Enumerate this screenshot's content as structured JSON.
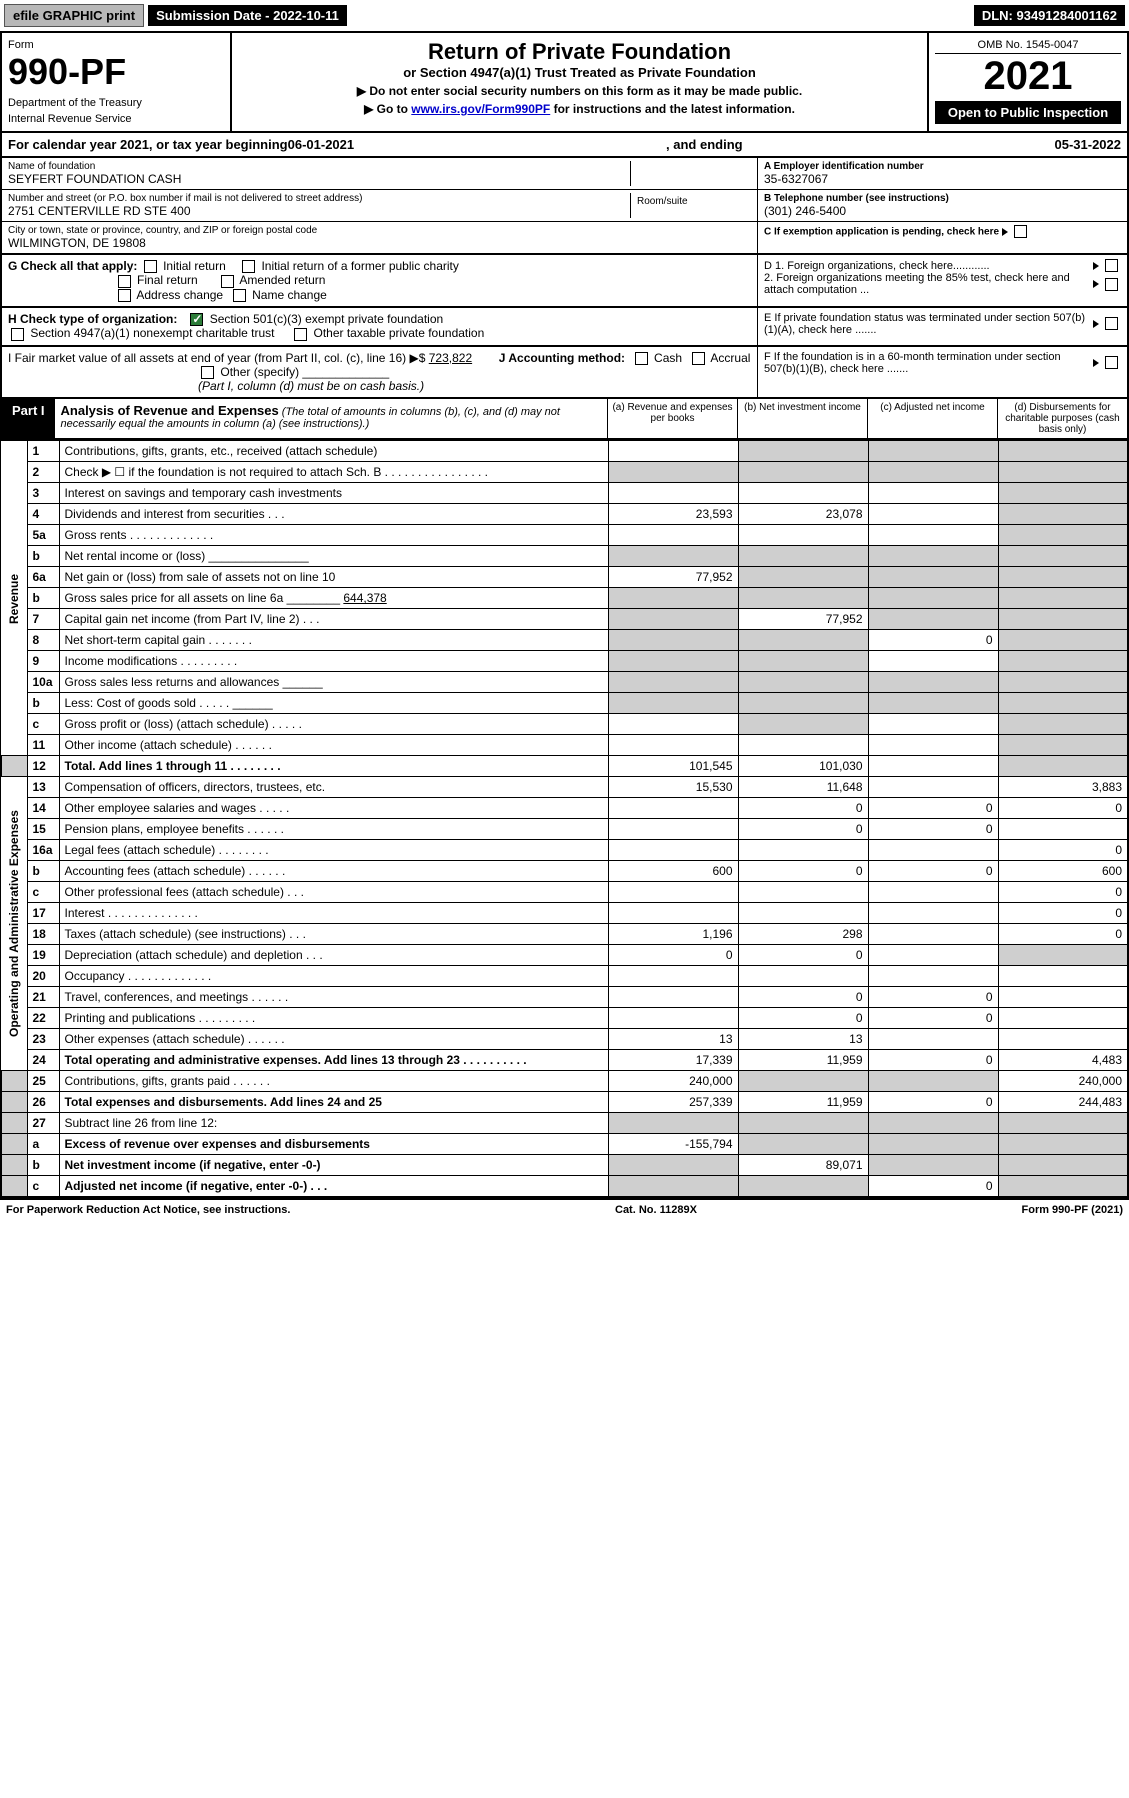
{
  "topbar": {
    "efile": "efile GRAPHIC print",
    "submission": "Submission Date - 2022-10-11",
    "dln": "DLN: 93491284001162"
  },
  "header": {
    "form": "Form",
    "number": "990-PF",
    "dept": "Department of the Treasury",
    "irs": "Internal Revenue Service",
    "title": "Return of Private Foundation",
    "subtitle": "or Section 4947(a)(1) Trust Treated as Private Foundation",
    "note1": "▶ Do not enter social security numbers on this form as it may be made public.",
    "note2_pre": "▶ Go to ",
    "note2_link": "www.irs.gov/Form990PF",
    "note2_post": " for instructions and the latest information.",
    "omb": "OMB No. 1545-0047",
    "year": "2021",
    "open": "Open to Public Inspection"
  },
  "calendar": {
    "text1": "For calendar year 2021, or tax year beginning ",
    "begin": "06-01-2021",
    "text2": ", and ending ",
    "end": "05-31-2022"
  },
  "info": {
    "name_label": "Name of foundation",
    "name": "SEYFERT FOUNDATION CASH",
    "street_label": "Number and street (or P.O. box number if mail is not delivered to street address)",
    "street": "2751 CENTERVILLE RD STE 400",
    "room_label": "Room/suite",
    "city_label": "City or town, state or province, country, and ZIP or foreign postal code",
    "city": "WILMINGTON, DE  19808",
    "ein_label": "A Employer identification number",
    "ein": "35-6327067",
    "phone_label": "B Telephone number (see instructions)",
    "phone": "(301) 246-5400",
    "c_label": "C If exemption application is pending, check here"
  },
  "checks": {
    "g_label": "G Check all that apply:",
    "g_opts": [
      "Initial return",
      "Initial return of a former public charity",
      "Final return",
      "Amended return",
      "Address change",
      "Name change"
    ],
    "h_label": "H Check type of organization:",
    "h1": "Section 501(c)(3) exempt private foundation",
    "h2": "Section 4947(a)(1) nonexempt charitable trust",
    "h3": "Other taxable private foundation",
    "i_label": "I Fair market value of all assets at end of year (from Part II, col. (c), line 16) ",
    "i_val": "723,822",
    "j_label": "J Accounting method:",
    "j_opts": [
      "Cash",
      "Accrual"
    ],
    "j_other": "Other (specify)",
    "j_note": "(Part I, column (d) must be on cash basis.)",
    "d1": "D 1. Foreign organizations, check here............",
    "d2": "2. Foreign organizations meeting the 85% test, check here and attach computation ...",
    "e": "E  If private foundation status was terminated under section 507(b)(1)(A), check here .......",
    "f": "F  If the foundation is in a 60-month termination under section 507(b)(1)(B), check here .......",
    "arrow": "▶"
  },
  "part1": {
    "label": "Part I",
    "title": "Analysis of Revenue and Expenses",
    "note": " (The total of amounts in columns (b), (c), and (d) may not necessarily equal the amounts in column (a) (see instructions).)",
    "cols": {
      "a": "(a) Revenue and expenses per books",
      "b": "(b) Net investment income",
      "c": "(c) Adjusted net income",
      "d": "(d) Disbursements for charitable purposes (cash basis only)"
    }
  },
  "side": {
    "rev": "Revenue",
    "exp": "Operating and Administrative Expenses"
  },
  "lines": {
    "l1": {
      "n": "1",
      "d": "Contributions, gifts, grants, etc., received (attach schedule)"
    },
    "l2": {
      "n": "2",
      "d": "Check ▶ ☐ if the foundation is not required to attach Sch. B   .   .   .   .   .   .   .   .   .   .   .   .   .   .   .   ."
    },
    "l3": {
      "n": "3",
      "d": "Interest on savings and temporary cash investments"
    },
    "l4": {
      "n": "4",
      "d": "Dividends and interest from securities   .   .   .",
      "a": "23,593",
      "b": "23,078"
    },
    "l5a": {
      "n": "5a",
      "d": "Gross rents   .   .   .   .   .   .   .   .   .   .   .   .   ."
    },
    "l5b": {
      "n": "b",
      "d": "Net rental income or (loss) _______________"
    },
    "l6a": {
      "n": "6a",
      "d": "Net gain or (loss) from sale of assets not on line 10",
      "a": "77,952"
    },
    "l6b": {
      "n": "b",
      "d": "Gross sales price for all assets on line 6a ________",
      "inline": "644,378"
    },
    "l7": {
      "n": "7",
      "d": "Capital gain net income (from Part IV, line 2)   .   .   .",
      "b": "77,952"
    },
    "l8": {
      "n": "8",
      "d": "Net short-term capital gain   .   .   .   .   .   .   .",
      "c": "0"
    },
    "l9": {
      "n": "9",
      "d": "Income modifications   .   .   .   .   .   .   .   .   ."
    },
    "l10a": {
      "n": "10a",
      "d": "Gross sales less returns and allowances ______"
    },
    "l10b": {
      "n": "b",
      "d": "Less: Cost of goods sold   .   .   .   .   . ______"
    },
    "l10c": {
      "n": "c",
      "d": "Gross profit or (loss) (attach schedule)   .   .   .   .   ."
    },
    "l11": {
      "n": "11",
      "d": "Other income (attach schedule)   .   .   .   .   .   ."
    },
    "l12": {
      "n": "12",
      "d": "Total. Add lines 1 through 11   .   .   .   .   .   .   .   .",
      "a": "101,545",
      "b": "101,030",
      "bold": true
    },
    "l13": {
      "n": "13",
      "d": "Compensation of officers, directors, trustees, etc.",
      "a": "15,530",
      "b": "11,648",
      "dd": "3,883"
    },
    "l14": {
      "n": "14",
      "d": "Other employee salaries and wages   .   .   .   .   .",
      "b": "0",
      "c": "0",
      "dd": "0"
    },
    "l15": {
      "n": "15",
      "d": "Pension plans, employee benefits   .   .   .   .   .   .",
      "b": "0",
      "c": "0"
    },
    "l16a": {
      "n": "16a",
      "d": "Legal fees (attach schedule)   .   .   .   .   .   .   .   .",
      "dd": "0"
    },
    "l16b": {
      "n": "b",
      "d": "Accounting fees (attach schedule)   .   .   .   .   .   .",
      "a": "600",
      "b": "0",
      "c": "0",
      "dd": "600"
    },
    "l16c": {
      "n": "c",
      "d": "Other professional fees (attach schedule)   .   .   .",
      "dd": "0"
    },
    "l17": {
      "n": "17",
      "d": "Interest   .   .   .   .   .   .   .   .   .   .   .   .   .   .",
      "dd": "0"
    },
    "l18": {
      "n": "18",
      "d": "Taxes (attach schedule) (see instructions)   .   .   .",
      "a": "1,196",
      "b": "298",
      "dd": "0"
    },
    "l19": {
      "n": "19",
      "d": "Depreciation (attach schedule) and depletion   .   .   .",
      "a": "0",
      "b": "0"
    },
    "l20": {
      "n": "20",
      "d": "Occupancy   .   .   .   .   .   .   .   .   .   .   .   .   ."
    },
    "l21": {
      "n": "21",
      "d": "Travel, conferences, and meetings   .   .   .   .   .   .",
      "b": "0",
      "c": "0"
    },
    "l22": {
      "n": "22",
      "d": "Printing and publications   .   .   .   .   .   .   .   .   .",
      "b": "0",
      "c": "0"
    },
    "l23": {
      "n": "23",
      "d": "Other expenses (attach schedule)   .   .   .   .   .   .",
      "a": "13",
      "b": "13"
    },
    "l24": {
      "n": "24",
      "d": "Total operating and administrative expenses. Add lines 13 through 23   .   .   .   .   .   .   .   .   .   .",
      "a": "17,339",
      "b": "11,959",
      "c": "0",
      "dd": "4,483",
      "bold": true
    },
    "l25": {
      "n": "25",
      "d": "Contributions, gifts, grants paid   .   .   .   .   .   .",
      "a": "240,000",
      "dd": "240,000"
    },
    "l26": {
      "n": "26",
      "d": "Total expenses and disbursements. Add lines 24 and 25",
      "a": "257,339",
      "b": "11,959",
      "c": "0",
      "dd": "244,483",
      "bold": true
    },
    "l27": {
      "n": "27",
      "d": "Subtract line 26 from line 12:"
    },
    "l27a": {
      "n": "a",
      "d": "Excess of revenue over expenses and disbursements",
      "a": "-155,794",
      "bold": true
    },
    "l27b": {
      "n": "b",
      "d": "Net investment income (if negative, enter -0-)",
      "b": "89,071",
      "bold": true
    },
    "l27c": {
      "n": "c",
      "d": "Adjusted net income (if negative, enter -0-)   .   .   .",
      "c": "0",
      "bold": true
    }
  },
  "footer": {
    "left": "For Paperwork Reduction Act Notice, see instructions.",
    "mid": "Cat. No. 11289X",
    "right": "Form 990-PF (2021)"
  },
  "colors": {
    "shaded": "#cfcfcf",
    "black": "#000000",
    "link": "#0000cc",
    "check_green": "#2d7d3a"
  }
}
